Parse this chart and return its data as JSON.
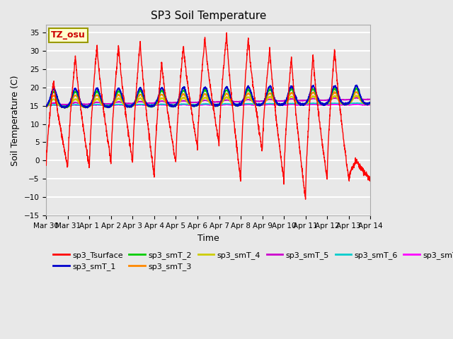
{
  "title": "SP3 Soil Temperature",
  "xlabel": "Time",
  "ylabel": "Soil Temperature (C)",
  "ylim": [
    -15,
    37
  ],
  "yticks": [
    -15,
    -10,
    -5,
    0,
    5,
    10,
    15,
    20,
    25,
    30,
    35
  ],
  "bg_color": "#e8e8e8",
  "plot_bg_color": "#e8e8e8",
  "grid_color": "white",
  "tz_label": "TZ_osu",
  "tz_box_color": "#ffffcc",
  "tz_text_color": "#cc0000",
  "series_colors": {
    "sp3_Tsurface": "#ff0000",
    "sp3_smT_1": "#0000cc",
    "sp3_smT_2": "#00cc00",
    "sp3_smT_3": "#ff8800",
    "sp3_smT_4": "#cccc00",
    "sp3_smT_5": "#cc00cc",
    "sp3_smT_6": "#00cccc",
    "sp3_smT_7": "#ff00ff"
  },
  "x_tick_labels": [
    "Mar 30",
    "Mar 31",
    "Apr 1",
    "Apr 2",
    "Apr 3",
    "Apr 4",
    "Apr 5",
    "Apr 6",
    "Apr 7",
    "Apr 8",
    "Apr 9",
    "Apr 10",
    "Apr 11",
    "Apr 12",
    "Apr 13",
    "Apr 14"
  ],
  "n_days": 15,
  "n_points_per_day": 144,
  "night_lows": [
    -2,
    -2,
    -2,
    -0.5,
    -0.5,
    -4.5,
    -0.5,
    3.5,
    4.5,
    -5.5,
    2.5,
    -5.5,
    -10.5,
    -5.0,
    -5.0
  ],
  "day_peaks": [
    22,
    28.5,
    31.5,
    31.5,
    32.5,
    27,
    31.5,
    33.5,
    34.5,
    33.5,
    30.5,
    28.5,
    29,
    30.5,
    0
  ],
  "depth_base": 15.0
}
